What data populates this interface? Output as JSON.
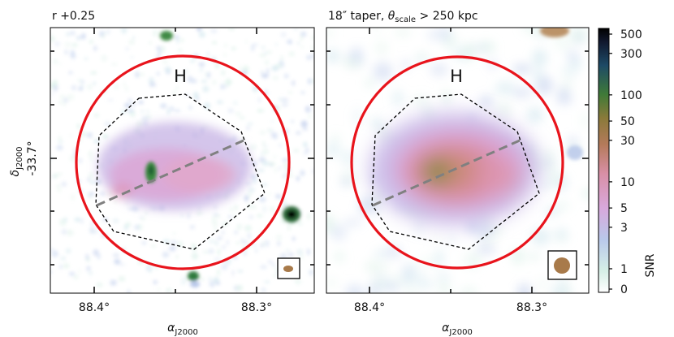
{
  "chart_data": [
    {
      "type": "heatmap",
      "title": "r +0.25",
      "xlabel": "α_J2000",
      "ylabel": "δ_J2000",
      "x_ticks": [
        88.4,
        88.3
      ],
      "x_tick_labels": [
        "88.4°",
        "88.3°"
      ],
      "y_ticks": [
        -33.7
      ],
      "y_tick_labels": [
        "-33.7°"
      ],
      "region_label": "H",
      "features": [
        "red circle aperture",
        "black dashed polygon region",
        "grey dashed axis line",
        "beam ellipse inset"
      ]
    },
    {
      "type": "heatmap",
      "title_parts": [
        "18″ taper, ",
        "θ",
        "scale",
        " > 250 kpc"
      ],
      "xlabel": "α_J2000",
      "x_ticks": [
        88.4,
        88.3
      ],
      "x_tick_labels": [
        "88.4°",
        "88.3°"
      ],
      "region_label": "H",
      "features": [
        "red circle aperture",
        "black dashed polygon region",
        "grey dashed axis line",
        "beam circle inset"
      ]
    }
  ],
  "colorbar": {
    "label": "SNR",
    "scale": "symlog",
    "range": [
      0,
      500
    ],
    "ticks": [
      0,
      1,
      3,
      5,
      10,
      30,
      50,
      100,
      300,
      500
    ],
    "tick_labels": [
      "0",
      "1",
      "3",
      "5",
      "10",
      "30",
      "50",
      "100",
      "300",
      "500"
    ]
  },
  "colors": {
    "circle": "#e8141c",
    "axis_line": "#808080",
    "beam": "#a87a4a"
  },
  "labels": {
    "left_title": "r +0.25",
    "right_title_pre": "18″ taper, ",
    "right_title_theta": "θ",
    "right_title_sub": "scale",
    "right_title_post": " > 250 kpc",
    "xlabel_alpha": "α",
    "xlabel_sub": "J2000",
    "ylabel_delta": "δ",
    "ylabel_sub": "J2000",
    "ytick_left": "-33.7°",
    "xtick_a": "88.4°",
    "xtick_b": "88.3°",
    "region": "H",
    "cbar_label": "SNR"
  }
}
